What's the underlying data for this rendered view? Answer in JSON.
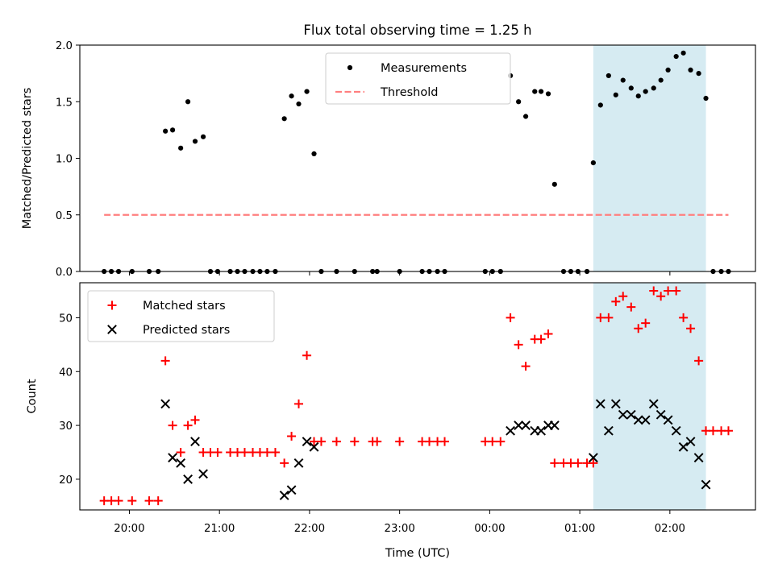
{
  "chart_data": {
    "title": "Flux total observing time = 1.25 h",
    "xlabel": "Time (UTC)",
    "x_ticks": [
      "20:00",
      "21:00",
      "22:00",
      "23:00",
      "00:00",
      "01:00",
      "02:00"
    ],
    "x_tick_hours": [
      20,
      21,
      22,
      23,
      24,
      25,
      26
    ],
    "xlim_hours": [
      19.45,
      26.95
    ],
    "highlight_span_hours": [
      25.15,
      26.4
    ],
    "highlight_color": "#add8e6",
    "panels": [
      {
        "type": "scatter",
        "ylabel": "Matched/Predicted stars",
        "ylim": [
          0,
          2.0
        ],
        "y_ticks": [
          "0.0",
          "0.5",
          "1.0",
          "1.5",
          "2.0"
        ],
        "y_tick_values": [
          0,
          0.5,
          1.0,
          1.5,
          2.0
        ],
        "legend_position": "top-center",
        "series": [
          {
            "name": "Measurements",
            "marker": "dot",
            "color": "#000000",
            "x_hours": [
              19.72,
              19.8,
              19.88,
              20.03,
              20.22,
              20.32,
              20.4,
              20.48,
              20.57,
              20.65,
              20.73,
              20.82,
              20.9,
              20.98,
              21.12,
              21.2,
              21.28,
              21.37,
              21.45,
              21.53,
              21.62,
              21.72,
              21.8,
              21.88,
              21.97,
              22.05,
              22.13,
              22.3,
              22.5,
              22.7,
              22.75,
              23.0,
              23.25,
              23.33,
              23.42,
              23.5,
              23.95,
              24.03,
              24.12,
              24.23,
              24.32,
              24.4,
              24.5,
              24.57,
              24.65,
              24.72,
              24.82,
              24.9,
              24.98,
              25.08,
              25.15,
              25.23,
              25.32,
              25.4,
              25.48,
              25.57,
              25.65,
              25.73,
              25.82,
              25.9,
              25.98,
              26.07,
              26.15,
              26.23,
              26.32,
              26.4,
              26.48,
              26.57,
              26.65
            ],
            "values": [
              0,
              0,
              0,
              0,
              0,
              0,
              1.24,
              1.25,
              1.09,
              1.5,
              1.15,
              1.19,
              0,
              0,
              0,
              0,
              0,
              0,
              0,
              0,
              0,
              1.35,
              1.55,
              1.48,
              1.59,
              1.04,
              0,
              0,
              0,
              0,
              0,
              0,
              0,
              0,
              0,
              0,
              0,
              0,
              0,
              1.73,
              1.5,
              1.37,
              1.59,
              1.59,
              1.57,
              0.77,
              0,
              0,
              0,
              0,
              0.96,
              1.47,
              1.73,
              1.56,
              1.69,
              1.62,
              1.55,
              1.59,
              1.62,
              1.69,
              1.78,
              1.9,
              1.93,
              1.78,
              1.75,
              1.53,
              0,
              0,
              0
            ]
          },
          {
            "name": "Threshold",
            "type": "line",
            "style": "dashed",
            "color": "#ff7f7f",
            "x_hours": [
              19.72,
              26.65
            ],
            "values": [
              0.5,
              0.5
            ]
          }
        ]
      },
      {
        "type": "scatter",
        "ylabel": "Count",
        "ylim": [
          14.3,
          56.5
        ],
        "y_ticks": [
          "20",
          "30",
          "40",
          "50"
        ],
        "y_tick_values": [
          20,
          30,
          40,
          50
        ],
        "legend_position": "top-left",
        "series": [
          {
            "name": "Matched stars",
            "marker": "plus",
            "color": "#ff0000",
            "x_hours": [
              19.72,
              19.8,
              19.88,
              20.03,
              20.22,
              20.32,
              20.4,
              20.48,
              20.57,
              20.65,
              20.73,
              20.82,
              20.9,
              20.98,
              21.12,
              21.2,
              21.28,
              21.37,
              21.45,
              21.53,
              21.62,
              21.72,
              21.8,
              21.88,
              21.97,
              22.05,
              22.13,
              22.3,
              22.5,
              22.7,
              22.75,
              23.0,
              23.25,
              23.33,
              23.42,
              23.5,
              23.95,
              24.03,
              24.12,
              24.23,
              24.32,
              24.4,
              24.5,
              24.57,
              24.65,
              24.72,
              24.82,
              24.9,
              24.98,
              25.08,
              25.15,
              25.23,
              25.32,
              25.4,
              25.48,
              25.57,
              25.65,
              25.73,
              25.82,
              25.9,
              25.98,
              26.07,
              26.15,
              26.23,
              26.32,
              26.4,
              26.48,
              26.57,
              26.65
            ],
            "values": [
              16,
              16,
              16,
              16,
              16,
              16,
              42,
              30,
              25,
              30,
              31,
              25,
              25,
              25,
              25,
              25,
              25,
              25,
              25,
              25,
              25,
              23,
              28,
              34,
              43,
              27,
              27,
              27,
              27,
              27,
              27,
              27,
              27,
              27,
              27,
              27,
              27,
              27,
              27,
              50,
              45,
              41,
              46,
              46,
              47,
              23,
              23,
              23,
              23,
              23,
              23,
              50,
              50,
              53,
              54,
              52,
              48,
              49,
              55,
              54,
              55,
              55,
              50,
              48,
              42,
              29,
              29,
              29,
              29
            ]
          },
          {
            "name": "Predicted stars",
            "marker": "x",
            "color": "#000000",
            "x_hours": [
              20.4,
              20.48,
              20.57,
              20.65,
              20.73,
              20.82,
              21.72,
              21.8,
              21.88,
              21.97,
              22.05,
              24.23,
              24.32,
              24.4,
              24.5,
              24.57,
              24.65,
              24.72,
              25.15,
              25.23,
              25.32,
              25.4,
              25.48,
              25.57,
              25.65,
              25.73,
              25.82,
              25.9,
              25.98,
              26.07,
              26.15,
              26.23,
              26.32,
              26.4
            ],
            "values": [
              34,
              24,
              23,
              20,
              27,
              21,
              17,
              18,
              23,
              27,
              26,
              29,
              30,
              30,
              29,
              29,
              30,
              30,
              24,
              34,
              29,
              34,
              32,
              32,
              31,
              31,
              34,
              32,
              31,
              29,
              26,
              27,
              24,
              19
            ]
          }
        ]
      }
    ]
  }
}
